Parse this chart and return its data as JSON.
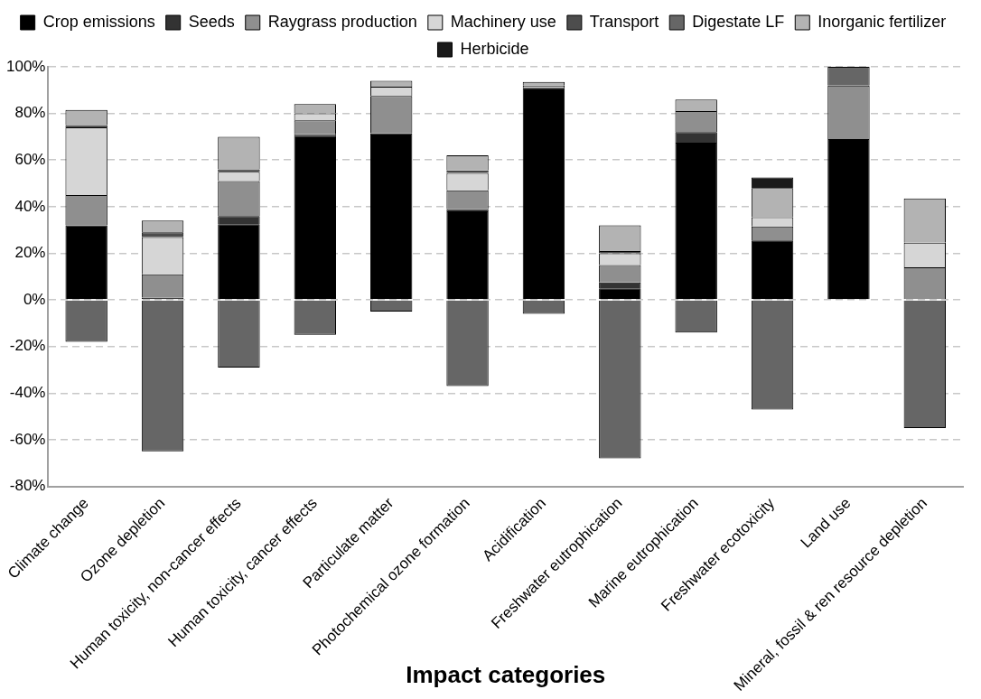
{
  "chart_data": {
    "type": "bar",
    "stacked": true,
    "xlabel": "Impact categories",
    "categories": [
      "Climate change",
      "Ozone depletion",
      "Human toxicity, non-cancer effects",
      "Human toxicity, cancer effects",
      "Particulate matter",
      "Photochemical ozone formation",
      "Acidification",
      "Freshwater eutrophication",
      "Marine eutrophication",
      "Freshwater ecotoxicity",
      "Land use",
      "Mineral, fossil & ren resource depletion"
    ],
    "series": [
      {
        "name": "Crop emissions",
        "color": "#000000",
        "values": [
          32,
          1,
          32.5,
          70.5,
          71.5,
          38,
          91,
          5,
          67.5,
          25.5,
          69,
          null
        ]
      },
      {
        "name": "Seeds",
        "color": "#333333",
        "values": [
          0,
          0,
          3.5,
          0.5,
          0,
          1,
          0,
          2.5,
          4.5,
          0,
          0,
          0
        ]
      },
      {
        "name": "Raygrass production",
        "color": "#8f8f8f",
        "values": [
          13,
          10,
          15,
          6,
          16,
          8,
          0,
          7.5,
          9,
          6,
          23,
          14
        ]
      },
      {
        "name": "Machinery use",
        "color": "#d6d6d6",
        "values": [
          29,
          16,
          4,
          3,
          4,
          7.5,
          1,
          5,
          0,
          4,
          0,
          10.5
        ]
      },
      {
        "name": "Transport",
        "color": "#4d4d4d",
        "values": [
          1,
          2,
          1,
          0,
          0,
          1,
          0,
          1,
          0,
          0,
          0,
          0
        ]
      },
      {
        "name": "Digestate LF",
        "color": "#666666",
        "values": [
          -18,
          -65,
          -29,
          -15,
          -5,
          -37,
          -6,
          -68,
          -14,
          -47,
          8,
          -55
        ]
      },
      {
        "name": "Inorganic fertilizer",
        "color": "#b3b3b3",
        "values": [
          6.5,
          5,
          14,
          4,
          2.5,
          6.5,
          1.5,
          11,
          5,
          12.5,
          0,
          19
        ]
      },
      {
        "name": "Herbicide",
        "color": "#1a1a1a",
        "values": [
          0,
          0,
          0,
          0,
          0,
          0,
          0,
          0,
          0,
          4.5,
          0,
          0
        ]
      }
    ],
    "ylim": [
      -80,
      100
    ],
    "yticks": [
      {
        "value": -80,
        "label": "-80%"
      },
      {
        "value": -60,
        "label": "-60%"
      },
      {
        "value": -40,
        "label": "-40%"
      },
      {
        "value": -20,
        "label": "-20%"
      },
      {
        "value": 0,
        "label": "0%"
      },
      {
        "value": 20,
        "label": "20%"
      },
      {
        "value": 40,
        "label": "40%"
      },
      {
        "value": 60,
        "label": "60%"
      },
      {
        "value": 80,
        "label": "80%"
      },
      {
        "value": 100,
        "label": "100%"
      }
    ],
    "grid": "y",
    "legend": "top"
  }
}
